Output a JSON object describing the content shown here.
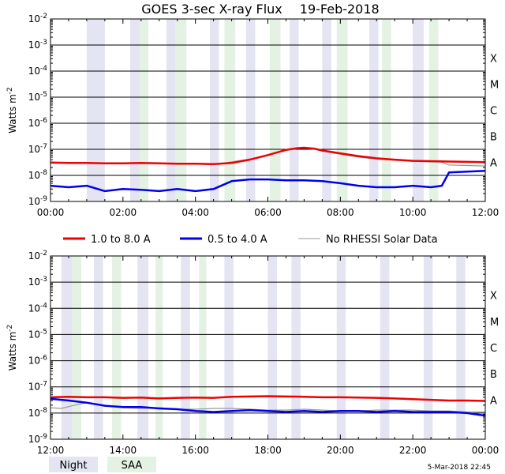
{
  "chart_data": {
    "type": "line",
    "title": "GOES 3-sec X-ray Flux",
    "date": "19-Feb-2018",
    "ylabel": "Watts m",
    "ylabel_exp": "-2",
    "y_scale": "log",
    "ylim": [
      1e-09,
      0.01
    ],
    "y_ticks": [
      {
        "base": "10",
        "exp": "-9"
      },
      {
        "base": "10",
        "exp": "-8"
      },
      {
        "base": "10",
        "exp": "-7"
      },
      {
        "base": "10",
        "exp": "-6"
      },
      {
        "base": "10",
        "exp": "-5"
      },
      {
        "base": "10",
        "exp": "-4"
      },
      {
        "base": "10",
        "exp": "-3"
      },
      {
        "base": "10",
        "exp": "-2"
      }
    ],
    "flare_classes": [
      {
        "label": "A",
        "value": 1e-08
      },
      {
        "label": "B",
        "value": 1e-07
      },
      {
        "label": "C",
        "value": 1e-06
      },
      {
        "label": "M",
        "value": 1e-05
      },
      {
        "label": "X",
        "value": 0.0001
      }
    ],
    "grid": true,
    "legend": [
      {
        "label": "1.0 to 8.0 A",
        "color": "#ee0000"
      },
      {
        "label": "0.5 to 4.0 A",
        "color": "#0000ee"
      },
      {
        "label": "No RHESSI Solar Data",
        "color": "#999999"
      }
    ],
    "band_legend": [
      {
        "label": "Night",
        "color": "#e4e4f2"
      },
      {
        "label": "SAA",
        "color": "#e4f2e4"
      }
    ],
    "timestamp": "5-Mar-2018 22:45",
    "panels": [
      {
        "xlim": [
          0,
          12
        ],
        "x_ticks": [
          "00:00",
          "02:00",
          "04:00",
          "06:00",
          "08:00",
          "10:00",
          "12:00"
        ],
        "night_bands": [
          [
            1.0,
            1.5
          ],
          [
            2.2,
            2.45
          ],
          [
            3.2,
            3.45
          ],
          [
            4.4,
            4.65
          ],
          [
            5.4,
            5.65
          ],
          [
            6.6,
            6.85
          ],
          [
            7.5,
            7.75
          ],
          [
            8.8,
            9.05
          ],
          [
            10.0,
            10.3
          ]
        ],
        "saa_bands": [
          [
            2.45,
            2.7
          ],
          [
            3.45,
            3.75
          ],
          [
            4.8,
            5.1
          ],
          [
            6.05,
            6.35
          ],
          [
            7.9,
            8.2
          ],
          [
            9.15,
            9.4
          ],
          [
            10.45,
            10.7
          ]
        ],
        "series": [
          {
            "name": "1.0 to 8.0 A",
            "color": "#ee0000",
            "x": [
              0,
              0.5,
              1,
              1.5,
              2,
              2.5,
              3,
              3.5,
              4,
              4.5,
              5,
              5.5,
              6,
              6.5,
              6.8,
              7,
              7.3,
              7.5,
              8,
              8.5,
              9,
              9.5,
              10,
              10.5,
              11,
              11.5,
              12
            ],
            "y": [
              3.1e-08,
              3e-08,
              3e-08,
              2.9e-08,
              2.9e-08,
              3e-08,
              2.9e-08,
              2.8e-08,
              2.8e-08,
              2.7e-08,
              3e-08,
              4e-08,
              6e-08,
              9.5e-08,
              1.1e-07,
              1.15e-07,
              1.05e-07,
              9e-08,
              7e-08,
              5.5e-08,
              4.5e-08,
              4e-08,
              3.6e-08,
              3.5e-08,
              3.4e-08,
              3.3e-08,
              3.2e-08
            ]
          },
          {
            "name": "0.5 to 4.0 A",
            "color": "#0000ee",
            "x": [
              0,
              0.5,
              1,
              1.5,
              2,
              2.5,
              3,
              3.5,
              4,
              4.5,
              5,
              5.5,
              6,
              6.5,
              7,
              7.5,
              8,
              8.5,
              9,
              9.5,
              10,
              10.5,
              10.8,
              11,
              11.5,
              12
            ],
            "y": [
              4e-09,
              3.5e-09,
              4e-09,
              2.5e-09,
              3e-09,
              2.8e-09,
              2.5e-09,
              3e-09,
              2.5e-09,
              3e-09,
              6e-09,
              7e-09,
              7e-09,
              6.5e-09,
              6.5e-09,
              6e-09,
              5e-09,
              4e-09,
              3.5e-09,
              3.5e-09,
              4e-09,
              3.5e-09,
              4e-09,
              1.3e-08,
              1.4e-08,
              1.5e-08
            ]
          },
          {
            "name": "No RHESSI Solar Data",
            "color": "#999999",
            "x": [
              0,
              0.5,
              1,
              1.5,
              2,
              2.5,
              3,
              3.5,
              4,
              4.5,
              5,
              5.5,
              6,
              6.5,
              6.8,
              7,
              7.3,
              7.5,
              8,
              8.5,
              9,
              9.5,
              10,
              10.5,
              10.8,
              11,
              11.5,
              12
            ],
            "y": [
              3.2e-08,
              3e-08,
              3e-08,
              2.8e-08,
              2.8e-08,
              3e-08,
              2.9e-08,
              2.8e-08,
              2.7e-08,
              2.6e-08,
              3.3e-08,
              4.2e-08,
              6e-08,
              9e-08,
              1.05e-07,
              1.1e-07,
              1e-07,
              8.5e-08,
              6.5e-08,
              5e-08,
              4.2e-08,
              3.8e-08,
              3.5e-08,
              3.3e-08,
              3.2e-08,
              2.5e-08,
              2.4e-08,
              2.3e-08
            ]
          }
        ]
      },
      {
        "xlim": [
          12,
          24
        ],
        "x_ticks": [
          "12:00",
          "14:00",
          "16:00",
          "18:00",
          "20:00",
          "22:00",
          "00:00"
        ],
        "night_bands": [
          [
            12.3,
            12.6
          ],
          [
            13.2,
            13.45
          ],
          [
            14.4,
            14.7
          ],
          [
            15.6,
            15.85
          ],
          [
            16.8,
            17.05
          ],
          [
            18.0,
            18.25
          ],
          [
            18.65,
            18.9
          ],
          [
            19.9,
            20.15
          ],
          [
            21.1,
            21.35
          ],
          [
            22.3,
            22.55
          ],
          [
            23.2,
            23.45
          ]
        ],
        "saa_bands": [
          [
            12.6,
            12.85
          ],
          [
            13.7,
            13.95
          ],
          [
            14.9,
            15.1
          ],
          [
            16.1,
            16.3
          ]
        ],
        "series": [
          {
            "name": "1.0 to 8.0 A",
            "color": "#ee0000",
            "x": [
              12,
              12.5,
              13,
              13.5,
              14,
              14.5,
              15,
              15.5,
              16,
              16.5,
              17,
              17.5,
              18,
              18.5,
              19,
              19.5,
              20,
              20.5,
              21,
              21.5,
              22,
              22.5,
              23,
              23.5,
              24
            ],
            "y": [
              4e-08,
              4.2e-08,
              4e-08,
              4e-08,
              3.8e-08,
              3.9e-08,
              3.6e-08,
              3.8e-08,
              3.9e-08,
              3.8e-08,
              4.2e-08,
              4.3e-08,
              4.4e-08,
              4.3e-08,
              4.2e-08,
              4e-08,
              4e-08,
              3.9e-08,
              3.8e-08,
              3.6e-08,
              3.4e-08,
              3.2e-08,
              3e-08,
              3e-08,
              2.9e-08
            ]
          },
          {
            "name": "0.5 to 4.0 A",
            "color": "#0000ee",
            "x": [
              12,
              12.5,
              13,
              13.5,
              14,
              14.5,
              15,
              15.5,
              16,
              16.5,
              17,
              17.5,
              18,
              18.5,
              19,
              19.5,
              20,
              20.5,
              21,
              21.5,
              22,
              22.5,
              23,
              23.5,
              24
            ],
            "y": [
              3.5e-08,
              3e-08,
              2.5e-08,
              1.9e-08,
              1.7e-08,
              1.7e-08,
              1.5e-08,
              1.4e-08,
              1.2e-08,
              1.1e-08,
              1.2e-08,
              1.3e-08,
              1.2e-08,
              1.1e-08,
              1.2e-08,
              1.1e-08,
              1.2e-08,
              1.2e-08,
              1.1e-08,
              1.2e-08,
              1.1e-08,
              1.1e-08,
              1.1e-08,
              1e-08,
              8e-09
            ]
          },
          {
            "name": "No RHESSI Solar Data",
            "color": "#999999",
            "x": [
              12,
              12.3,
              12.6,
              13,
              13.5,
              14,
              14.5,
              15,
              15.5,
              16,
              16.5,
              17,
              17.5,
              18,
              18.5,
              19,
              19.5,
              20,
              20.5,
              21,
              21.5,
              22,
              22.5,
              23,
              23.5,
              24
            ],
            "y": [
              1.6e-08,
              1.5e-08,
              1.9e-08,
              2.5e-08,
              2e-08,
              1.6e-08,
              1.5e-08,
              1.6e-08,
              1.4e-08,
              1.4e-08,
              1.5e-08,
              1.5e-08,
              1.4e-08,
              1.3e-08,
              1.3e-08,
              1.4e-08,
              1.3e-08,
              1.2e-08,
              1.2e-08,
              1.3e-08,
              1.3e-08,
              1.3e-08,
              1.2e-08,
              1.2e-08,
              1.1e-08,
              1.1e-08
            ]
          }
        ]
      }
    ]
  }
}
